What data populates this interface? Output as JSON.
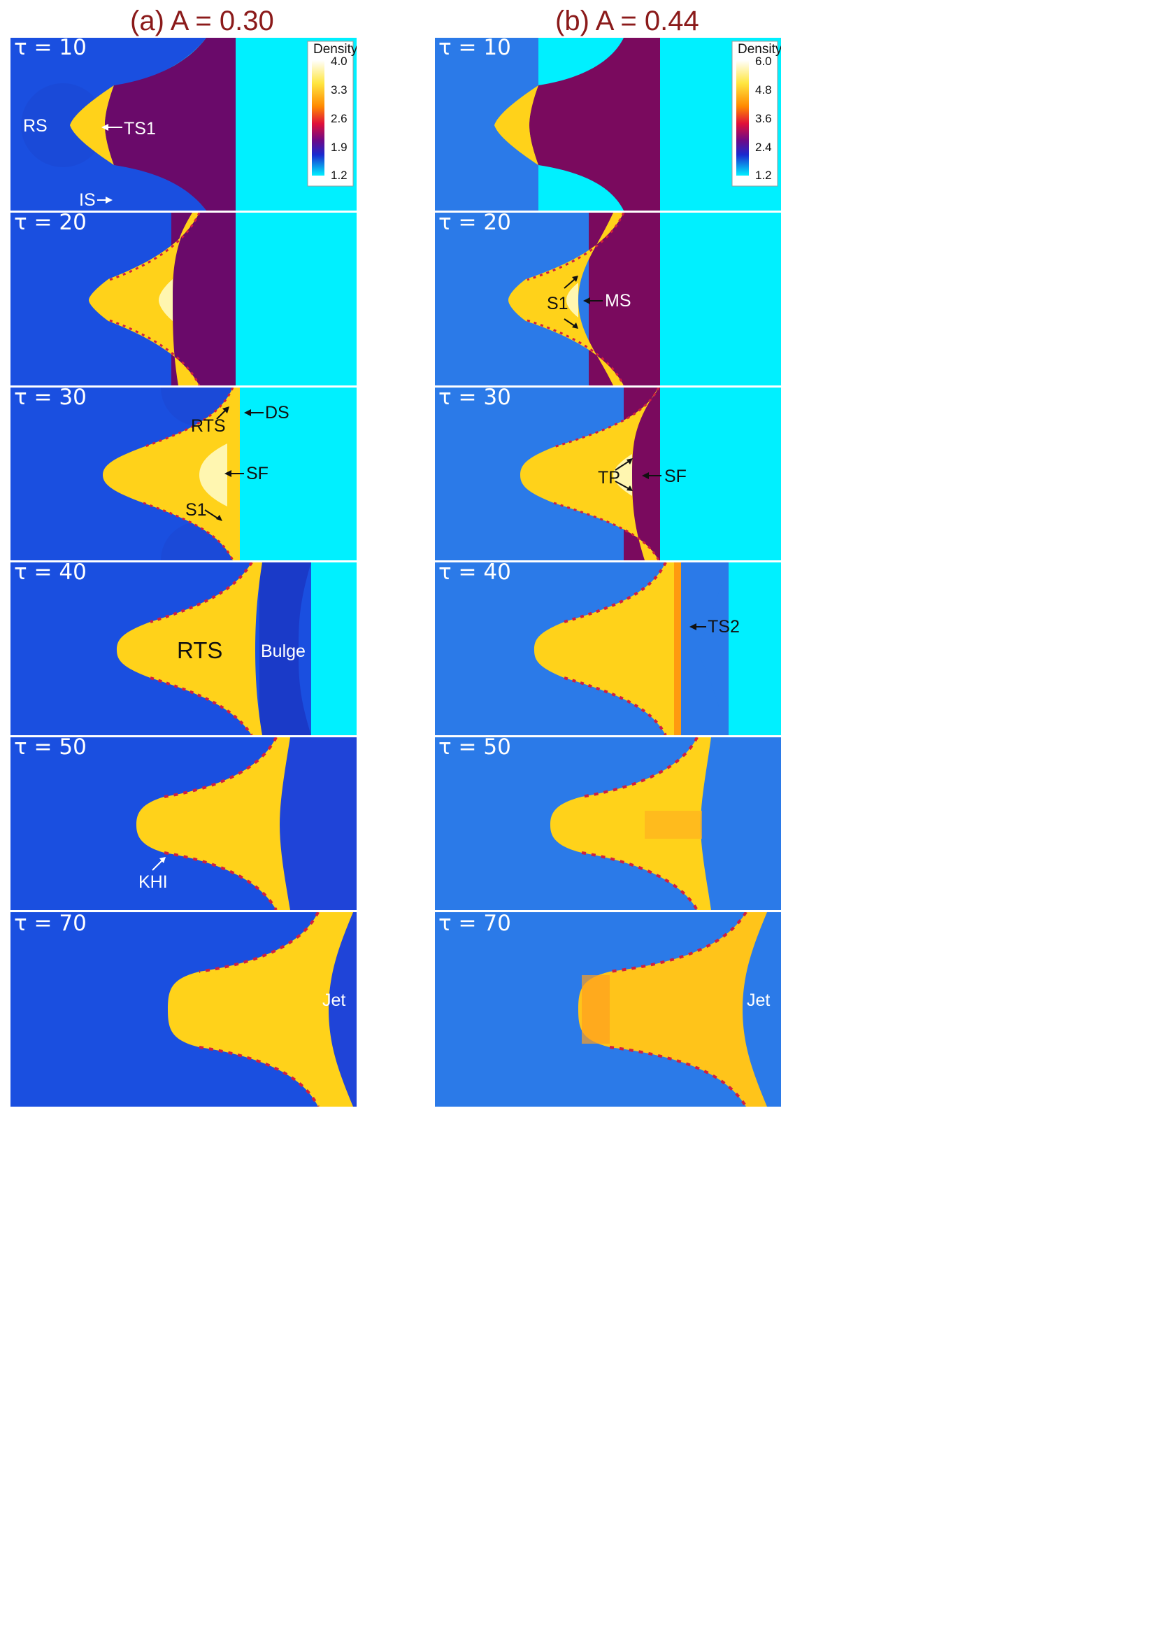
{
  "columns": [
    {
      "title": "(a) A = 0.30"
    },
    {
      "title": "(b) A = 0.44"
    }
  ],
  "rows": [
    {
      "tau": "τ = 10"
    },
    {
      "tau": "τ = 20"
    },
    {
      "tau": "τ = 30"
    },
    {
      "tau": "τ = 40"
    },
    {
      "tau": "τ = 50"
    },
    {
      "tau": "τ = 70"
    }
  ],
  "colorbars": [
    {
      "title": "Density",
      "ticks": [
        "4.0",
        "3.3",
        "2.6",
        "1.9",
        "1.2"
      ]
    },
    {
      "title": "Density",
      "ticks": [
        "6.0",
        "4.8",
        "3.6",
        "2.4",
        "1.2"
      ]
    }
  ],
  "annotations": {
    "RS": "RS",
    "TS1": "TS1",
    "IS": "IS",
    "S1": "S1",
    "MS": "MS",
    "RTS": "RTS",
    "DS": "DS",
    "SF": "SF",
    "TP": "TP",
    "Bulge": "Bulge",
    "TS2": "TS2",
    "KHI": "KHI",
    "Jet": "Jet"
  },
  "colors": {
    "bg_dark_blue": "#1a4fe0",
    "bg_light_blue": "#2b7ae8",
    "cyan": "#00f0ff",
    "purple": "#6a0a6a",
    "purple_b": "#7a0a5e",
    "yellow": "#ffd21a",
    "orange": "#ffb020",
    "title_red": "#8b1a1a"
  }
}
